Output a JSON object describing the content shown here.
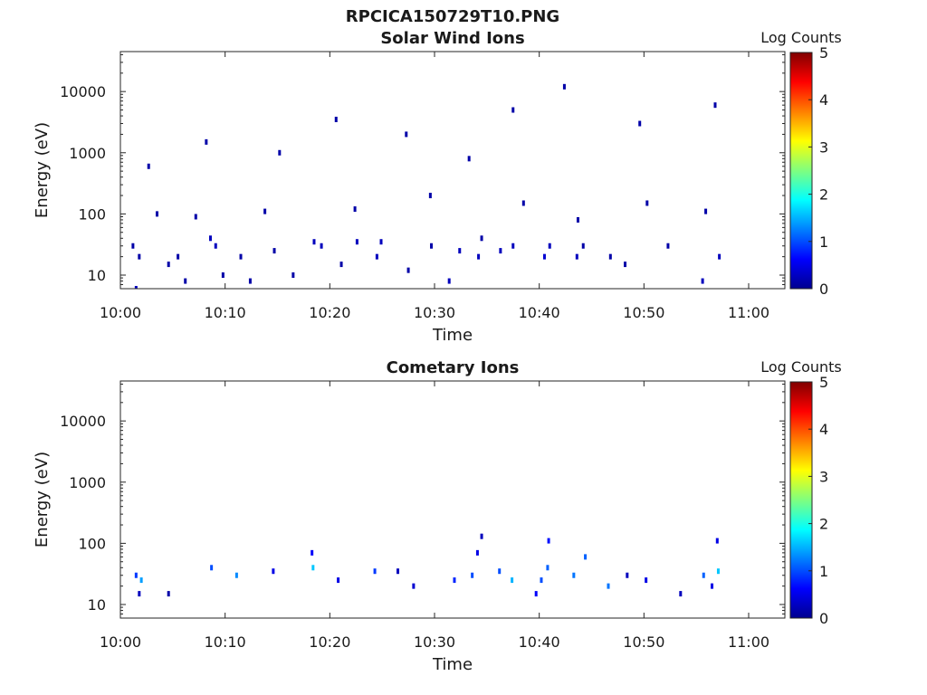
{
  "figure_title": "RPCICA150729T10.PNG",
  "chart_data": [
    {
      "type": "heatmap",
      "title": "Solar Wind Ions",
      "xlabel": "Time",
      "ylabel": "Energy (eV)",
      "x_ticks": [
        "10:00",
        "10:10",
        "10:20",
        "10:30",
        "10:40",
        "10:50",
        "11:00"
      ],
      "x_range_minutes": [
        0,
        63
      ],
      "y_scale": "log",
      "y_ticks": [
        10,
        100,
        1000,
        10000
      ],
      "y_tick_labels": [
        "10",
        "100",
        "1000",
        "10000"
      ],
      "y_range": [
        6,
        45000
      ],
      "colorbar": {
        "label": "Log Counts",
        "ticks": [
          "0",
          "1",
          "2",
          "3",
          "4",
          "5"
        ],
        "range": [
          0,
          5
        ],
        "colormap": "jet"
      },
      "data_extent_minutes": [
        0,
        57.5
      ],
      "dominant_value_log_counts": 0.2,
      "points": [
        [
          1.2,
          30,
          0.2
        ],
        [
          1.8,
          20,
          0.2
        ],
        [
          1.5,
          6,
          0.3
        ],
        [
          4.6,
          15,
          0.2
        ],
        [
          5.5,
          20,
          0.2
        ],
        [
          6.2,
          8,
          0.2
        ],
        [
          8.6,
          40,
          0.3
        ],
        [
          9.1,
          30,
          0.3
        ],
        [
          9.8,
          10,
          0.2
        ],
        [
          11.5,
          20,
          0.2
        ],
        [
          12.4,
          8,
          0.2
        ],
        [
          14.7,
          25,
          0.2
        ],
        [
          16.5,
          10,
          0.2
        ],
        [
          18.5,
          35,
          0.3
        ],
        [
          19.2,
          30,
          0.3
        ],
        [
          21.1,
          15,
          0.2
        ],
        [
          22.6,
          35,
          0.3
        ],
        [
          24.5,
          20,
          0.3
        ],
        [
          24.9,
          35,
          0.3
        ],
        [
          27.5,
          12,
          0.2
        ],
        [
          29.7,
          30,
          0.2
        ],
        [
          31.4,
          8,
          0.3
        ],
        [
          32.4,
          25,
          0.3
        ],
        [
          34.2,
          20,
          0.3
        ],
        [
          34.5,
          40,
          0.2
        ],
        [
          36.3,
          25,
          0.3
        ],
        [
          37.5,
          30,
          0.3
        ],
        [
          40.5,
          20,
          0.4
        ],
        [
          41.0,
          30,
          0.3
        ],
        [
          43.6,
          20,
          0.3
        ],
        [
          44.2,
          30,
          0.2
        ],
        [
          46.8,
          20,
          0.2
        ],
        [
          48.2,
          15,
          0.2
        ],
        [
          52.3,
          30,
          0.2
        ],
        [
          55.6,
          8,
          0.3
        ],
        [
          57.2,
          20,
          0.3
        ],
        [
          3.5,
          100,
          0.2
        ],
        [
          7.2,
          90,
          0.2
        ],
        [
          13.8,
          110,
          0.2
        ],
        [
          22.4,
          120,
          0.2
        ],
        [
          29.6,
          200,
          0.2
        ],
        [
          38.5,
          150,
          0.2
        ],
        [
          43.7,
          80,
          0.2
        ],
        [
          50.3,
          150,
          0.2
        ],
        [
          55.9,
          110,
          0.2
        ],
        [
          2.7,
          600,
          0.2
        ],
        [
          8.2,
          1500,
          0.2
        ],
        [
          15.2,
          1000,
          0.2
        ],
        [
          20.6,
          3500,
          0.2
        ],
        [
          27.3,
          2000,
          0.2
        ],
        [
          33.3,
          800,
          0.2
        ],
        [
          37.5,
          5000,
          0.2
        ],
        [
          42.4,
          12000,
          0.2
        ],
        [
          49.6,
          3000,
          0.2
        ],
        [
          56.8,
          6000,
          0.2
        ]
      ]
    },
    {
      "type": "heatmap",
      "title": "Cometary Ions",
      "xlabel": "Time",
      "ylabel": "Energy (eV)",
      "x_ticks": [
        "10:00",
        "10:10",
        "10:20",
        "10:30",
        "10:40",
        "10:50",
        "11:00"
      ],
      "x_range_minutes": [
        0,
        63
      ],
      "y_scale": "log",
      "y_ticks": [
        10,
        100,
        1000,
        10000
      ],
      "y_tick_labels": [
        "10",
        "100",
        "1000",
        "10000"
      ],
      "y_range": [
        6,
        45000
      ],
      "colorbar": {
        "label": "Log Counts",
        "ticks": [
          "0",
          "1",
          "2",
          "3",
          "4",
          "5"
        ],
        "range": [
          0,
          5
        ],
        "colormap": "jet"
      },
      "data_extent_minutes": [
        0,
        57.5
      ],
      "points": [
        [
          1.5,
          30,
          0.9
        ],
        [
          2.0,
          25,
          1.4
        ],
        [
          1.8,
          15,
          0.3
        ],
        [
          4.6,
          15,
          0.2
        ],
        [
          8.7,
          40,
          1.0
        ],
        [
          11.1,
          30,
          1.3
        ],
        [
          14.6,
          35,
          0.5
        ],
        [
          18.4,
          40,
          1.6
        ],
        [
          18.3,
          70,
          0.6
        ],
        [
          20.8,
          25,
          0.5
        ],
        [
          24.3,
          35,
          0.9
        ],
        [
          26.5,
          35,
          0.3
        ],
        [
          28.0,
          20,
          0.4
        ],
        [
          31.9,
          25,
          0.8
        ],
        [
          33.6,
          30,
          1.0
        ],
        [
          34.1,
          70,
          0.5
        ],
        [
          36.2,
          35,
          1.0
        ],
        [
          37.4,
          25,
          1.5
        ],
        [
          40.2,
          25,
          1.0
        ],
        [
          40.8,
          40,
          1.1
        ],
        [
          40.9,
          110,
          0.7
        ],
        [
          43.3,
          30,
          1.2
        ],
        [
          44.4,
          60,
          1.1
        ],
        [
          46.6,
          20,
          1.2
        ],
        [
          48.4,
          30,
          0.3
        ],
        [
          50.2,
          25,
          0.5
        ],
        [
          53.5,
          15,
          0.3
        ],
        [
          55.7,
          30,
          1.1
        ],
        [
          56.5,
          20,
          0.5
        ],
        [
          57.1,
          35,
          1.6
        ],
        [
          57.0,
          110,
          0.5
        ],
        [
          34.5,
          130,
          0.3
        ],
        [
          39.7,
          15,
          0.6
        ]
      ]
    }
  ]
}
